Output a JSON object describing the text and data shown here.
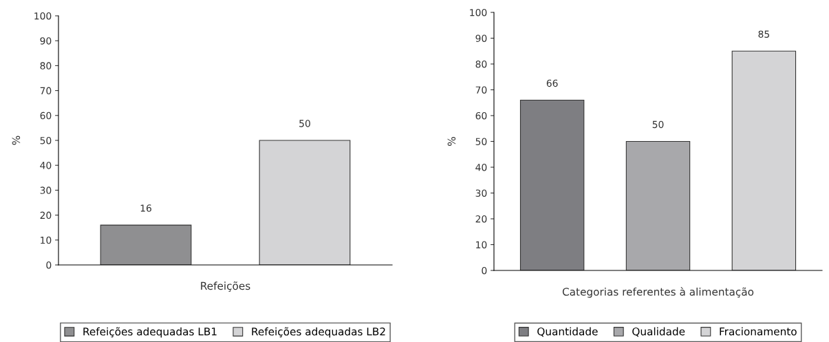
{
  "chart_data": [
    {
      "type": "bar",
      "xlabel": "Refeições",
      "ylabel": "%",
      "categories": [
        null
      ],
      "ylim": [
        0,
        100
      ],
      "yticks": [
        0,
        10,
        20,
        30,
        40,
        50,
        60,
        70,
        80,
        90,
        100
      ],
      "data_labels": true,
      "legend": "bottom",
      "series": [
        {
          "name": "Refeições adequadas LB1",
          "color": "#8f8f91",
          "values": [
            16
          ]
        },
        {
          "name": "Refeições adequadas LB2",
          "color": "#d4d4d6",
          "values": [
            50
          ]
        }
      ]
    },
    {
      "type": "bar",
      "xlabel": "Categorias referentes à alimentação",
      "ylabel": "%",
      "categories": [
        null
      ],
      "ylim": [
        0,
        100
      ],
      "yticks": [
        0,
        10,
        20,
        30,
        40,
        50,
        60,
        70,
        80,
        90,
        100
      ],
      "data_labels": true,
      "legend": "bottom",
      "series": [
        {
          "name": "Quantidade",
          "color": "#7e7e82",
          "values": [
            66
          ]
        },
        {
          "name": "Qualidade",
          "color": "#a8a8ab",
          "values": [
            50
          ]
        },
        {
          "name": "Fracionamento",
          "color": "#d4d4d6",
          "values": [
            85
          ]
        }
      ]
    }
  ]
}
